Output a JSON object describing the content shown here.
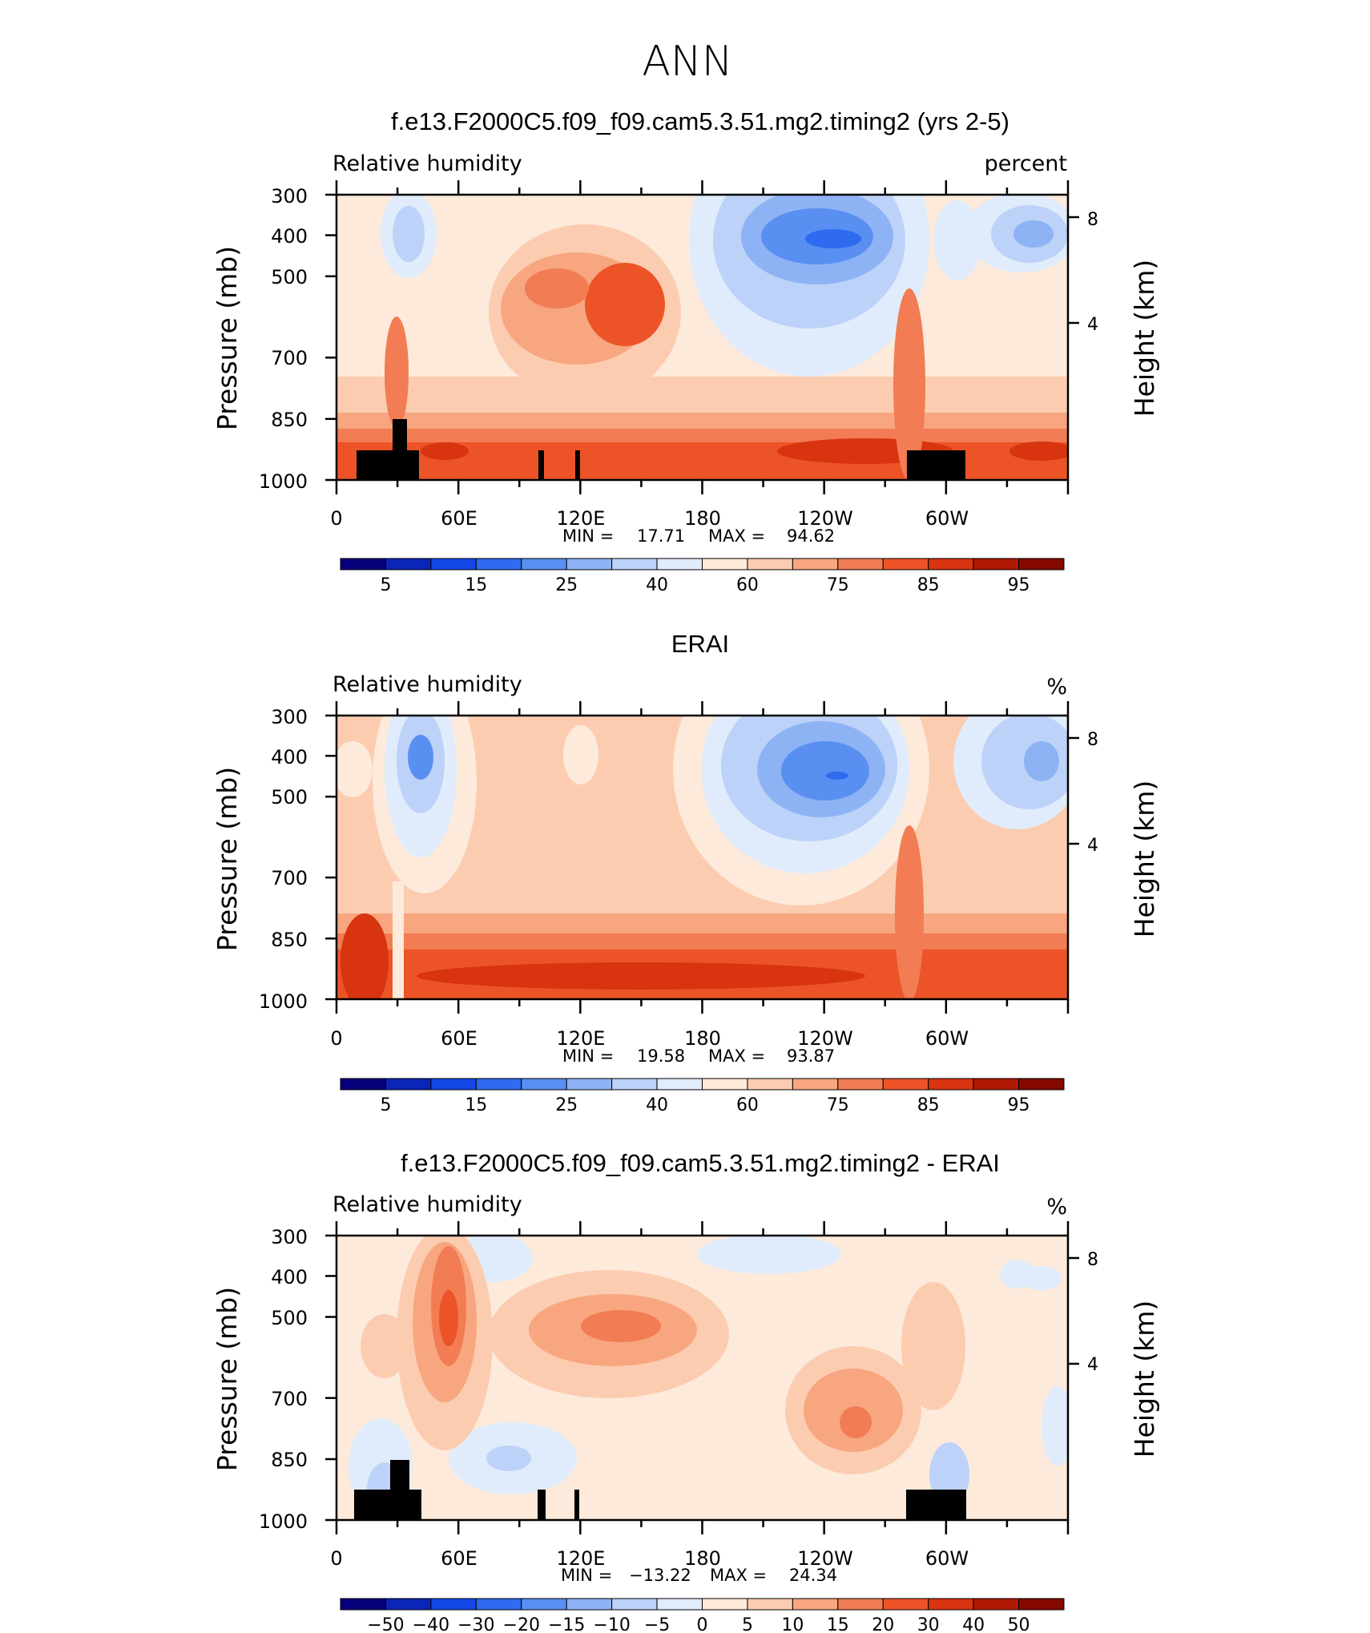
{
  "figure_title": "ANN",
  "chart_data": [
    {
      "type": "heatmap",
      "title": "f.e13.F2000C5.f09_f09.cam5.3.51.mg2.timing2 (yrs 2-5)",
      "left_label": "Relative humidity",
      "right_label": "percent",
      "ylabel": "Pressure (mb)",
      "ylabel_right": "Height (km)",
      "x_ticks": [
        "0",
        "60E",
        "120E",
        "180",
        "120W",
        "60W"
      ],
      "y_ticks": [
        "300",
        "400",
        "500",
        "700",
        "850",
        "1000"
      ],
      "y_right_ticks": [
        "8",
        "4"
      ],
      "ylim": [
        1000,
        300
      ],
      "min_label": "MIN =",
      "min_value": "17.71",
      "max_label": "MAX =",
      "max_value": "94.62",
      "colorbar_labels": [
        "5",
        "15",
        "25",
        "40",
        "60",
        "75",
        "85",
        "95"
      ],
      "colorbar_colors": [
        "#08007a",
        "#0a25b8",
        "#1448e6",
        "#2e6bf0",
        "#5a8ff2",
        "#8eb3f5",
        "#bcd2f8",
        "#e0ecfb",
        "#fdeadb",
        "#fcccb0",
        "#f7a680",
        "#f27c53",
        "#ec5428",
        "#d83410",
        "#b01a05",
        "#840800"
      ]
    },
    {
      "type": "heatmap",
      "title": "ERAI",
      "left_label": "Relative humidity",
      "right_label": "%",
      "ylabel": "Pressure (mb)",
      "ylabel_right": "Height (km)",
      "x_ticks": [
        "0",
        "60E",
        "120E",
        "180",
        "120W",
        "60W"
      ],
      "y_ticks": [
        "300",
        "400",
        "500",
        "700",
        "850",
        "1000"
      ],
      "y_right_ticks": [
        "8",
        "4"
      ],
      "ylim": [
        1000,
        300
      ],
      "min_label": "MIN =",
      "min_value": "19.58",
      "max_label": "MAX =",
      "max_value": "93.87",
      "colorbar_labels": [
        "5",
        "15",
        "25",
        "40",
        "60",
        "75",
        "85",
        "95"
      ],
      "colorbar_colors": [
        "#08007a",
        "#0a25b8",
        "#1448e6",
        "#2e6bf0",
        "#5a8ff2",
        "#8eb3f5",
        "#bcd2f8",
        "#e0ecfb",
        "#fdeadb",
        "#fcccb0",
        "#f7a680",
        "#f27c53",
        "#ec5428",
        "#d83410",
        "#b01a05",
        "#840800"
      ]
    },
    {
      "type": "heatmap",
      "title": "f.e13.F2000C5.f09_f09.cam5.3.51.mg2.timing2 - ERAI",
      "left_label": "Relative humidity",
      "right_label": "%",
      "ylabel": "Pressure (mb)",
      "ylabel_right": "Height (km)",
      "x_ticks": [
        "0",
        "60E",
        "120E",
        "180",
        "120W",
        "60W"
      ],
      "y_ticks": [
        "300",
        "400",
        "500",
        "700",
        "850",
        "1000"
      ],
      "y_right_ticks": [
        "8",
        "4"
      ],
      "ylim": [
        1000,
        300
      ],
      "min_label": "MIN =",
      "min_value": "−13.22",
      "max_label": "MAX =",
      "max_value": "24.34",
      "colorbar_labels": [
        "−50",
        "−40",
        "−30",
        "−20",
        "−15",
        "−10",
        "−5",
        "0",
        "5",
        "10",
        "15",
        "20",
        "30",
        "40",
        "50"
      ],
      "colorbar_colors": [
        "#08007a",
        "#0a25b8",
        "#1448e6",
        "#2e6bf0",
        "#5a8ff2",
        "#8eb3f5",
        "#bcd2f8",
        "#e0ecfb",
        "#fdeadb",
        "#fcccb0",
        "#f7a680",
        "#f27c53",
        "#ec5428",
        "#d83410",
        "#b01a05",
        "#840800"
      ]
    }
  ]
}
